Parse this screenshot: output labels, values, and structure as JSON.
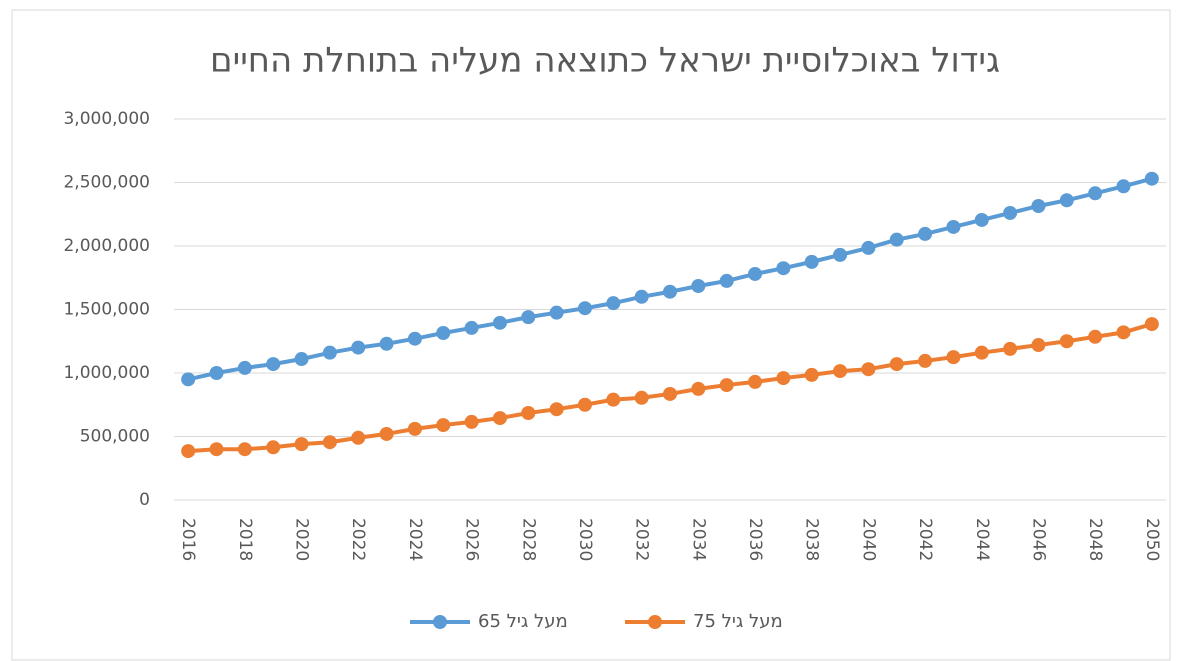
{
  "chart_data": {
    "type": "line",
    "title": "גידול באוכלוסיית ישראל כתוצאה מעליה בתוחלת החיים",
    "categories": [
      "2016",
      null,
      "2018",
      null,
      "2020",
      null,
      "2022",
      null,
      "2024",
      null,
      "2026",
      null,
      "2028",
      null,
      "2030",
      null,
      "2032",
      null,
      "2034",
      null,
      "2036",
      null,
      "2038",
      null,
      "2040",
      null,
      "2042",
      null,
      "2044",
      null,
      "2046",
      null,
      "2048",
      null,
      "2050"
    ],
    "series": [
      {
        "name": "מעל גיל 65",
        "color": "#5b9bd5",
        "values": [
          950000,
          1000000,
          1040000,
          1070000,
          1110000,
          1160000,
          1200000,
          1230000,
          1270000,
          1315000,
          1355000,
          1395000,
          1440000,
          1475000,
          1510000,
          1550000,
          1600000,
          1640000,
          1685000,
          1725000,
          1780000,
          1825000,
          1875000,
          1930000,
          1985000,
          2050000,
          2095000,
          2150000,
          2205000,
          2260000,
          2315000,
          2360000,
          2415000,
          2470000,
          2530000
        ]
      },
      {
        "name": "מעל גיל 75",
        "color": "#ed7d31",
        "values": [
          385000,
          400000,
          400000,
          415000,
          440000,
          455000,
          490000,
          520000,
          560000,
          590000,
          615000,
          645000,
          685000,
          715000,
          750000,
          790000,
          805000,
          835000,
          875000,
          905000,
          930000,
          960000,
          985000,
          1015000,
          1030000,
          1070000,
          1095000,
          1125000,
          1160000,
          1190000,
          1220000,
          1250000,
          1285000,
          1320000,
          1385000
        ]
      }
    ],
    "ylim": [
      0,
      3000000
    ],
    "yticks": [
      0,
      {
        "value": 500000,
        "label": "500,000"
      },
      {
        "value": 1000000,
        "label": "1,000,000"
      },
      {
        "value": 1500000,
        "label": "1,500,000"
      },
      {
        "value": 2000000,
        "label": "2,000,000"
      },
      {
        "value": 2500000,
        "label": "2,500,000"
      },
      {
        "value": 3000000,
        "label": "3,000,000"
      }
    ],
    "grid": true,
    "legend": "bottom"
  }
}
